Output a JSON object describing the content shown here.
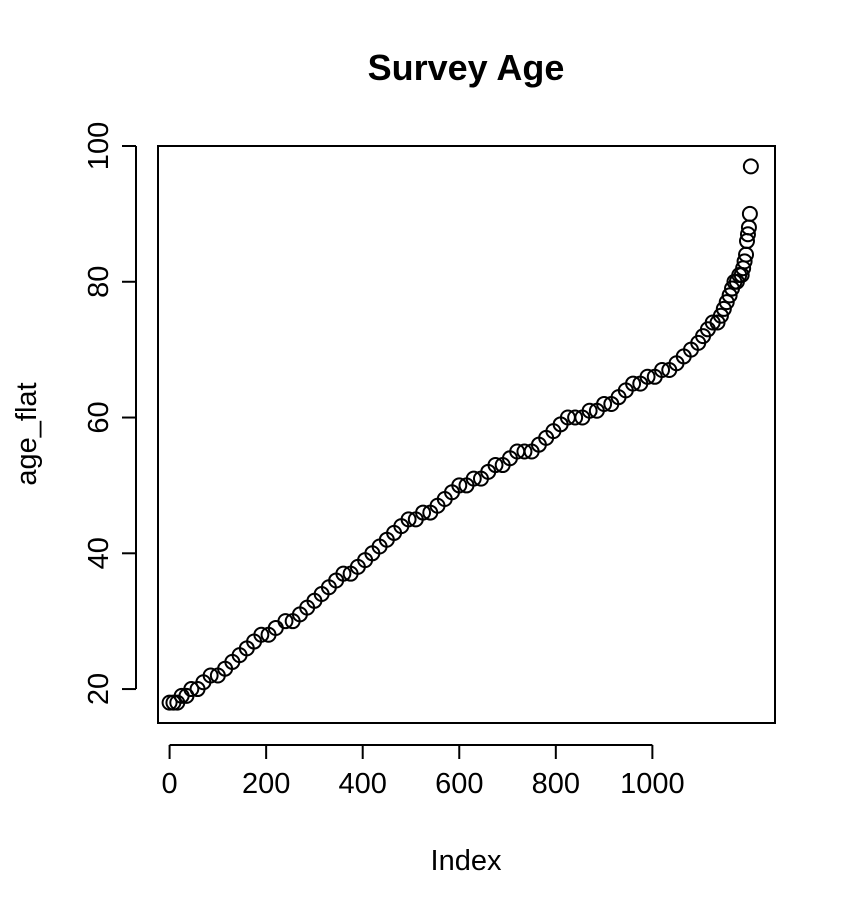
{
  "chart_data": {
    "type": "scatter",
    "title": "Survey Age",
    "xlabel": "Index",
    "ylabel": "age_flat",
    "xlim": [
      -24,
      1254
    ],
    "ylim": [
      15,
      100
    ],
    "xticks": [
      0,
      200,
      400,
      600,
      800,
      1000
    ],
    "xtick_labels": [
      "0",
      "200",
      "400",
      "600",
      "800",
      "1000"
    ],
    "yticks": [
      20,
      40,
      60,
      80,
      100
    ],
    "ytick_labels": [
      "20",
      "40",
      "60",
      "80",
      "100"
    ],
    "marker": "open-circle",
    "grid": false,
    "legend": "none",
    "colors": {
      "marker": "#000000",
      "frame": "#000000",
      "background": "#ffffff"
    },
    "points": [
      [
        0,
        18
      ],
      [
        8,
        18
      ],
      [
        16,
        18
      ],
      [
        25,
        19
      ],
      [
        35,
        19
      ],
      [
        45,
        20
      ],
      [
        58,
        20
      ],
      [
        70,
        21
      ],
      [
        85,
        22
      ],
      [
        100,
        22
      ],
      [
        115,
        23
      ],
      [
        130,
        24
      ],
      [
        145,
        25
      ],
      [
        160,
        26
      ],
      [
        175,
        27
      ],
      [
        190,
        28
      ],
      [
        205,
        28
      ],
      [
        220,
        29
      ],
      [
        240,
        30
      ],
      [
        255,
        30
      ],
      [
        270,
        31
      ],
      [
        285,
        32
      ],
      [
        300,
        33
      ],
      [
        315,
        34
      ],
      [
        330,
        35
      ],
      [
        345,
        36
      ],
      [
        360,
        37
      ],
      [
        375,
        37
      ],
      [
        390,
        38
      ],
      [
        405,
        39
      ],
      [
        420,
        40
      ],
      [
        435,
        41
      ],
      [
        450,
        42
      ],
      [
        465,
        43
      ],
      [
        480,
        44
      ],
      [
        495,
        45
      ],
      [
        510,
        45
      ],
      [
        525,
        46
      ],
      [
        540,
        46
      ],
      [
        555,
        47
      ],
      [
        570,
        48
      ],
      [
        585,
        49
      ],
      [
        600,
        50
      ],
      [
        615,
        50
      ],
      [
        630,
        51
      ],
      [
        645,
        51
      ],
      [
        660,
        52
      ],
      [
        675,
        53
      ],
      [
        690,
        53
      ],
      [
        705,
        54
      ],
      [
        720,
        55
      ],
      [
        735,
        55
      ],
      [
        750,
        55
      ],
      [
        765,
        56
      ],
      [
        780,
        57
      ],
      [
        795,
        58
      ],
      [
        810,
        59
      ],
      [
        825,
        60
      ],
      [
        840,
        60
      ],
      [
        855,
        60
      ],
      [
        870,
        61
      ],
      [
        885,
        61
      ],
      [
        900,
        62
      ],
      [
        915,
        62
      ],
      [
        930,
        63
      ],
      [
        945,
        64
      ],
      [
        960,
        65
      ],
      [
        975,
        65
      ],
      [
        990,
        66
      ],
      [
        1005,
        66
      ],
      [
        1020,
        67
      ],
      [
        1035,
        67
      ],
      [
        1050,
        68
      ],
      [
        1065,
        69
      ],
      [
        1080,
        70
      ],
      [
        1095,
        71
      ],
      [
        1105,
        72
      ],
      [
        1115,
        73
      ],
      [
        1125,
        74
      ],
      [
        1135,
        74
      ],
      [
        1142,
        75
      ],
      [
        1148,
        76
      ],
      [
        1154,
        77
      ],
      [
        1160,
        78
      ],
      [
        1165,
        79
      ],
      [
        1170,
        80
      ],
      [
        1175,
        80
      ],
      [
        1180,
        81
      ],
      [
        1185,
        81
      ],
      [
        1188,
        82
      ],
      [
        1191,
        83
      ],
      [
        1194,
        84
      ],
      [
        1196,
        86
      ],
      [
        1198,
        87
      ],
      [
        1200,
        88
      ],
      [
        1202,
        90
      ],
      [
        1204,
        97
      ]
    ]
  }
}
